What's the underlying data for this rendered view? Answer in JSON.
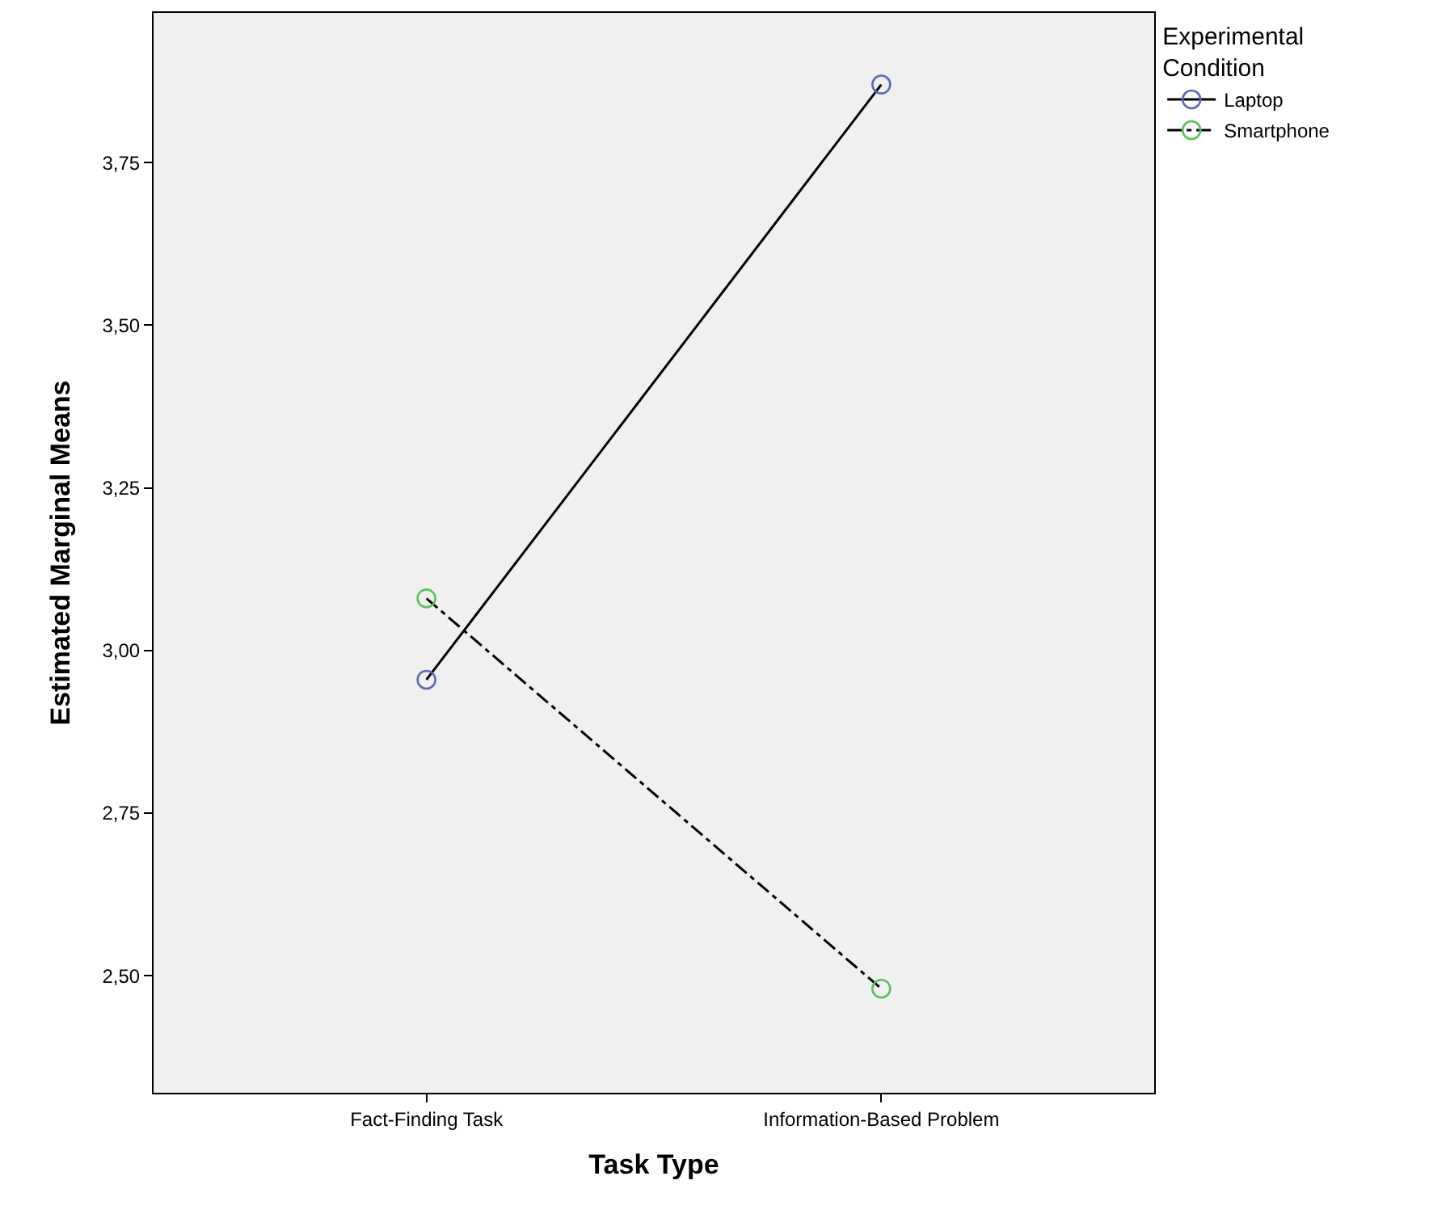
{
  "chart_data": {
    "type": "line",
    "xlabel": "Task Type",
    "ylabel": "Estimated Marginal Means",
    "legend_title": "Experimental Condition",
    "categories": [
      "Fact-Finding Task",
      "Information-Based Problem"
    ],
    "series": [
      {
        "name": "Laptop",
        "color": "#000000",
        "colors": [
          "#5b6bb8",
          "#5b6bb8"
        ],
        "line_style": "solid",
        "values": [
          2.955,
          3.87
        ]
      },
      {
        "name": "Smartphone",
        "color": "#000000",
        "colors": [
          "#5cc05c",
          "#5cc05c"
        ],
        "line_style": "dashdot",
        "values": [
          3.08,
          2.48
        ]
      }
    ],
    "ylim": [
      2.32,
      3.98
    ],
    "yticks": [
      {
        "value": 2.5,
        "label": "2,50"
      },
      {
        "value": 2.75,
        "label": "2,75"
      },
      {
        "value": 3.0,
        "label": "3,00"
      },
      {
        "value": 3.25,
        "label": "3,25"
      },
      {
        "value": 3.5,
        "label": "3,50"
      },
      {
        "value": 3.75,
        "label": "3,75"
      }
    ],
    "marker": "circle",
    "grid": false,
    "legend": "top right"
  }
}
